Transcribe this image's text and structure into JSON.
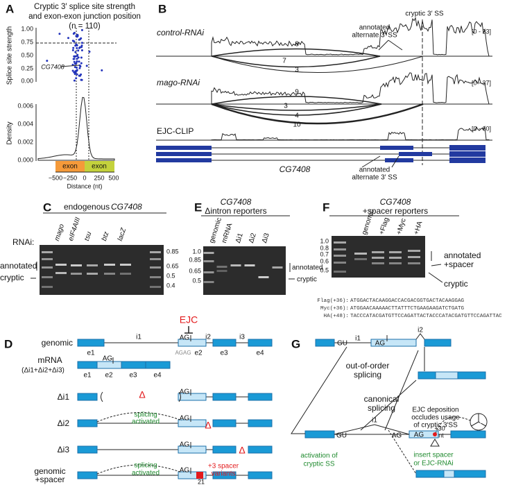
{
  "A": {
    "label": "A",
    "title": [
      "Cryptic 3′ splice site strength",
      "and exon-exon junction position",
      "(n = 110)"
    ],
    "top_ylabel": "Splice site strength",
    "top_yticks": [
      "1.00",
      "0.75",
      "0.50",
      "0.25",
      "0.00"
    ],
    "gene": "CG7408",
    "bottom_ylabel": "Density",
    "bottom_yticks": [
      "0.006",
      "0.004",
      "0.002",
      "0.000"
    ],
    "exons": [
      "exon",
      "exon"
    ],
    "xticks": [
      "−500",
      "−250",
      "0",
      "250",
      "500"
    ],
    "xlabel": "Distance (nt)"
  },
  "B": {
    "label": "B",
    "cryptic": "cryptic 3′ SS",
    "tracks": [
      {
        "name": "control-RNAi",
        "range": "[0 - 33]",
        "junctions": [
          "8",
          "7",
          "3"
        ]
      },
      {
        "name": "mago-RNAi",
        "range": "[0 - 37]",
        "junctions": [
          "9",
          "3",
          "4",
          "10"
        ]
      },
      {
        "name": "EJC-CLIP",
        "range": "[0 - 60]"
      }
    ],
    "annot_top": [
      "annotated",
      "alternate 3′ SS"
    ],
    "annot_bottom": [
      "annotated",
      "alternate 3′ SS"
    ],
    "gene": "CG7408"
  },
  "C": {
    "label": "C",
    "title": [
      "endogenous",
      "CG7408"
    ],
    "rnai": "RNAi:",
    "lanes": [
      "mago",
      "eIF4AIII",
      "tsu",
      "btz",
      "lacZ"
    ],
    "ladder": [
      "0.85",
      "0.65",
      "0.5",
      "0.4"
    ],
    "bands": [
      "annotated",
      "cryptic"
    ]
  },
  "E": {
    "label": "E",
    "title": [
      "CG7408",
      "Δintron reporters"
    ],
    "lanes": [
      "genomic",
      "mRNA",
      "Δi1",
      "Δi2",
      "Δi3"
    ],
    "ladder": [
      "1.0",
      "0.85",
      "0.65",
      "0.5"
    ],
    "bands": [
      "annotated",
      "cryptic"
    ]
  },
  "F": {
    "label": "F",
    "title": [
      "CG7408",
      "+spacer reporters"
    ],
    "lanes": [
      "genomic",
      "+Flag",
      "+Myc",
      "+HA"
    ],
    "ladder": [
      "1.0",
      "0.8",
      "0.7",
      "0.6",
      "0.5"
    ],
    "bands": [
      "annotated",
      "+spacer",
      "cryptic"
    ],
    "sequences": [
      {
        "name": "Flag(+36):",
        "seq": "ATGGACTACAAGGACCACGACGGTGACTACAAGGAG"
      },
      {
        "name": "Myc(+36):",
        "seq": "ATGGAACAAAAACTTATTTCTGAAGAAGATCTGATG"
      },
      {
        "name": "HA(+48):",
        "seq": "TACCCATACGATGTTCCAGATTACTACCCATACGATGTTCCAGATTAC"
      }
    ]
  },
  "D": {
    "label": "D",
    "genomic": {
      "name": "genomic",
      "ejc": "EJC",
      "introns": [
        "i1",
        "i2",
        "i3"
      ],
      "ag": "AG",
      "agag": "AGAG",
      "exons": [
        "e1",
        "e2",
        "e3",
        "e4"
      ]
    },
    "mrna": {
      "name": [
        "mRNA",
        "(Δi1+Δi2+Δi3)"
      ],
      "ag": "AG",
      "exons": [
        "e1",
        "e2",
        "e3",
        "e4"
      ]
    },
    "di1": {
      "name": "Δi1",
      "delta": "Δ",
      "ag": "AG"
    },
    "di2": {
      "name": "Δi2",
      "note": [
        "splicing",
        "activated"
      ],
      "ag": "AG",
      "delta": "Δ"
    },
    "di3": {
      "name": "Δi3",
      "ag": "AG",
      "delta": "Δ"
    },
    "spacer": {
      "name": [
        "genomic",
        "+spacer"
      ],
      "note": [
        "splicing",
        "activated"
      ],
      "ag": "AG",
      "spacer": [
        "+3 spacer",
        "variants"
      ],
      "pos": "21"
    }
  },
  "G": {
    "label": "G",
    "top": {
      "gu": "GU",
      "intron1": "i1",
      "ag": "AG",
      "intron2": "i2"
    },
    "out_of_order": [
      "out-of-order",
      "splicing"
    ],
    "canonical": [
      "canonical",
      "splicing"
    ],
    "ejc_note": [
      "EJC deposition",
      "occludes usage",
      "of cryptic 3′SS"
    ],
    "ejc": [
      "E",
      "J",
      "C"
    ],
    "spacer_len": [
      "+30",
      "nt"
    ],
    "mid": {
      "gu": "GU",
      "intron1": "i1",
      "ag": [
        "AG",
        "AG"
      ]
    },
    "insert": [
      "insert spacer",
      "or EJC-RNAi"
    ],
    "activation": [
      "activation of",
      "cryptic SS"
    ]
  }
}
